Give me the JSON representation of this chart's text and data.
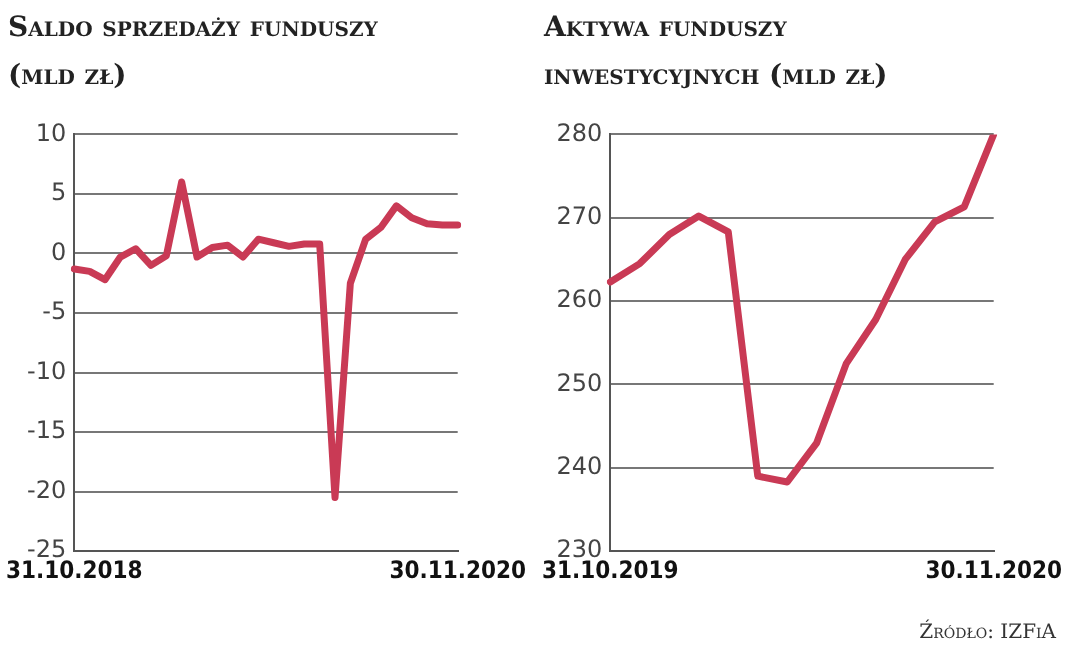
{
  "chart_data": [
    {
      "type": "line",
      "title": "Saldo sprzedaży funduszy (mld zł)",
      "categories": [
        "31.10.2018",
        null,
        null,
        null,
        null,
        null,
        null,
        null,
        null,
        null,
        null,
        null,
        null,
        null,
        null,
        null,
        null,
        null,
        null,
        null,
        null,
        null,
        null,
        null,
        null,
        "30.11.2020"
      ],
      "series": [
        {
          "color": "#c93a55",
          "values": [
            -1.3,
            -1.5,
            -2.2,
            -0.3,
            0.4,
            -1,
            -0.2,
            6,
            -0.3,
            0.5,
            0.7,
            -0.3,
            1.2,
            0.9,
            0.6,
            0.8,
            0.8,
            -20.5,
            -2.5,
            1.2,
            2.2,
            4,
            3,
            2.5,
            2.4,
            2.4
          ]
        }
      ],
      "ylim": [
        -25,
        10
      ],
      "yticks": [
        -25,
        -20,
        -15,
        -10,
        -5,
        0,
        5,
        10
      ],
      "grid": "y",
      "legend": false,
      "marker": "none",
      "line_style": "solid"
    },
    {
      "type": "line",
      "title": "Aktywa funduszy inwestycyjnych (mld zł)",
      "categories": [
        "31.10.2019",
        null,
        null,
        null,
        null,
        null,
        null,
        null,
        null,
        null,
        null,
        null,
        null,
        "30.11.2020"
      ],
      "series": [
        {
          "color": "#c93a55",
          "values": [
            262.3,
            264.5,
            268,
            270.2,
            268.3,
            239,
            238.3,
            243,
            252.5,
            257.8,
            265,
            269.5,
            271.3,
            280
          ]
        }
      ],
      "ylim": [
        230,
        280
      ],
      "yticks": [
        230,
        240,
        250,
        260,
        270,
        280
      ],
      "grid": "y",
      "legend": false,
      "marker": "none",
      "line_style": "solid",
      "annotations": [
        "Źródło: IZFiA"
      ]
    }
  ]
}
